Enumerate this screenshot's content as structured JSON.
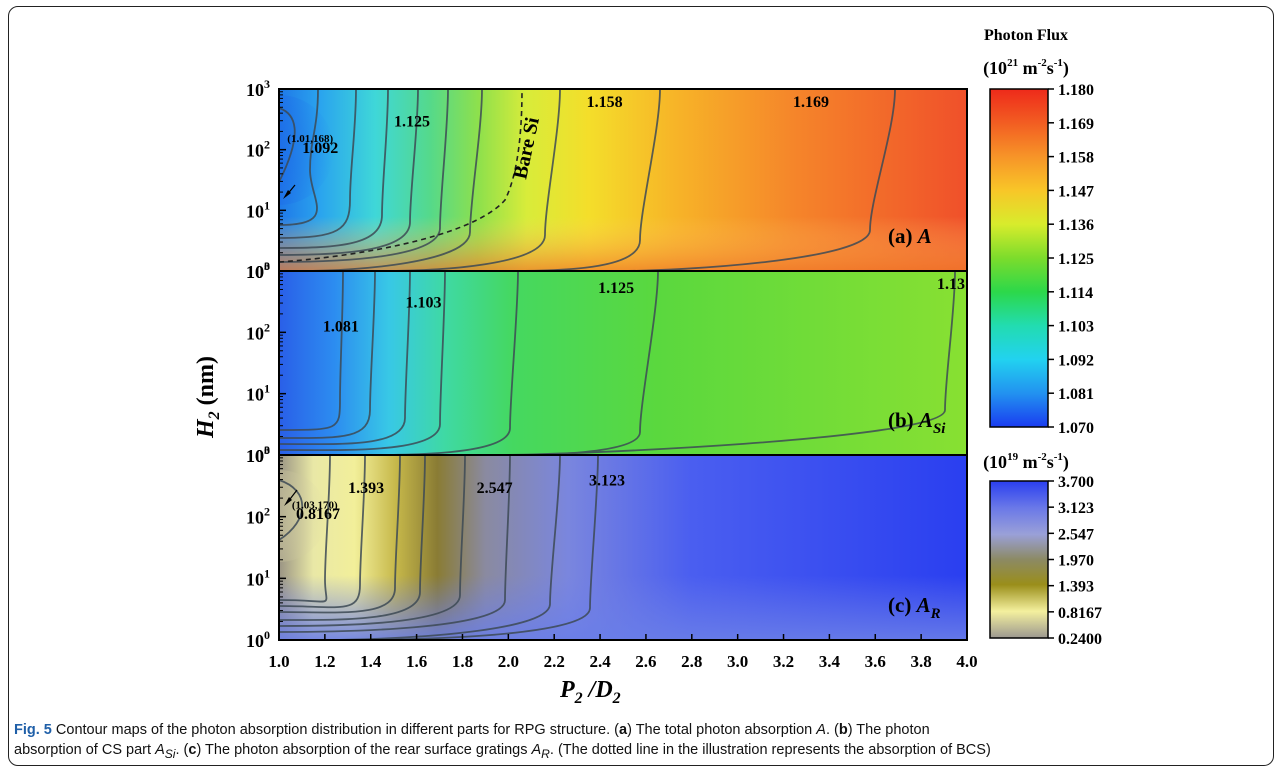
{
  "chart_data": [
    {
      "type": "heatmap",
      "panel_label": "(a)",
      "panel_symbol": "A",
      "panel_subscript": "",
      "xlim": [
        1.0,
        4.0
      ],
      "ylim": [
        1,
        1000
      ],
      "yscale": "log",
      "contour_labels": [
        {
          "x": 1.01,
          "y": 168,
          "text": "(1.01,168)"
        },
        {
          "x": 1.18,
          "y": 110,
          "text": "1.092"
        },
        {
          "x": 1.58,
          "y": 300,
          "text": "1.125"
        },
        {
          "x": 2.42,
          "y": 650,
          "text": "1.158"
        },
        {
          "x": 3.32,
          "y": 650,
          "text": "1.169"
        }
      ],
      "annotation": "Bare Si",
      "colorbar": {
        "title": "Photon Flux",
        "unit": "(10²¹ m⁻²s⁻¹)",
        "ticks": [
          "1.180",
          "1.169",
          "1.158",
          "1.147",
          "1.136",
          "1.125",
          "1.114",
          "1.103",
          "1.092",
          "1.081",
          "1.070"
        ]
      }
    },
    {
      "type": "heatmap",
      "panel_label": "(b)",
      "panel_symbol": "A",
      "panel_subscript": "Si",
      "xlim": [
        1.0,
        4.0
      ],
      "ylim": [
        1,
        1000
      ],
      "yscale": "log",
      "contour_labels": [
        {
          "x": 1.27,
          "y": 130,
          "text": "1.081"
        },
        {
          "x": 1.63,
          "y": 320,
          "text": "1.103"
        },
        {
          "x": 2.47,
          "y": 550,
          "text": "1.125"
        },
        {
          "x": 3.93,
          "y": 1000,
          "text": "1.13"
        }
      ]
    },
    {
      "type": "heatmap",
      "panel_label": "(c)",
      "panel_symbol": "A",
      "panel_subscript": "R",
      "xlim": [
        1.0,
        4.0
      ],
      "ylim": [
        1,
        1000
      ],
      "yscale": "log",
      "contour_labels": [
        {
          "x": 1.03,
          "y": 170,
          "text": "(1.03,170)"
        },
        {
          "x": 1.38,
          "y": 300,
          "text": "1.393"
        },
        {
          "x": 1.17,
          "y": 115,
          "text": "0.8167"
        },
        {
          "x": 1.94,
          "y": 300,
          "text": "2.547"
        },
        {
          "x": 2.43,
          "y": 400,
          "text": "3.123"
        }
      ],
      "colorbar": {
        "title": "",
        "unit": "(10¹⁹ m⁻²s⁻¹)",
        "ticks": [
          "3.700",
          "3.123",
          "2.547",
          "1.970",
          "1.393",
          "0.8167",
          "0.2400"
        ]
      }
    }
  ],
  "axes": {
    "xlabel": "P",
    "xlabel_sub1": "2",
    "xlabel_mid": " /D",
    "xlabel_sub2": "2",
    "ylabel": "H",
    "ylabel_sub": "2",
    "ylabel_unit": " (nm)",
    "x_ticks": [
      "1.0",
      "1.2",
      "1.4",
      "1.6",
      "1.8",
      "2.0",
      "2.2",
      "2.4",
      "2.6",
      "2.8",
      "3.0",
      "3.2",
      "3.4",
      "3.6",
      "3.8",
      "4.0"
    ],
    "y_tick_base": "10",
    "y_tick_exps": [
      "0",
      "1",
      "2",
      "3"
    ]
  },
  "colorbar_top": {
    "title": "Photon Flux",
    "unit_base": "(10",
    "unit_exp": "21",
    "unit_rest": " m",
    "unit_e2": "-2",
    "unit_s": "s",
    "unit_e3": "-1",
    "unit_close": ")"
  },
  "colorbar_bottom": {
    "unit_base": "(10",
    "unit_exp": "19",
    "unit_rest": " m",
    "unit_e2": "-2",
    "unit_s": "s",
    "unit_e3": "-1",
    "unit_close": ")"
  },
  "caption": {
    "fig": "Fig. 5",
    "text1": " Contour maps of the photon absorption distribution in different parts for RPG structure. (",
    "a": "a",
    "text2": ") The total photon absorption ",
    "A": "A",
    "text3": ". (",
    "b": "b",
    "text4": ") The photon",
    "text5": "absorption of CS part ",
    "ASi": "A",
    "Si": "Si",
    "text6": ". (",
    "c": "c",
    "text7": ") The photon absorption of the rear surface gratings ",
    "AR": "A",
    "R": "R",
    "text8": ". (The dotted line in the illustration represents the absorption of BCS)"
  }
}
